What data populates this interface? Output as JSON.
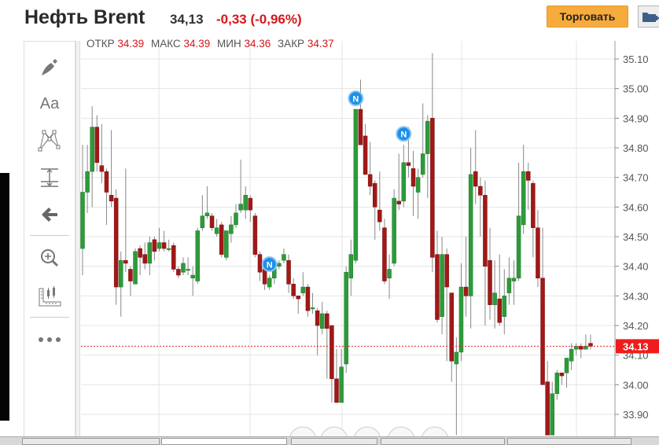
{
  "header": {
    "title": "Нефть Brent",
    "last_price": "34,13",
    "change": "-0,33 (-0,96%)",
    "trade_button": "Торговать",
    "add_to_portfolio_icon": "folder-plus-icon"
  },
  "ohlc_bar": {
    "open_label": "ОТКР",
    "open": "34.39",
    "high_label": "МАКС",
    "high": "34.39",
    "low_label": "МИН",
    "low": "34.36",
    "close_label": "ЗАКР",
    "close": "34.37"
  },
  "toolbar": {
    "items": [
      "brush-icon",
      "text-icon",
      "pattern-icon",
      "measure-icon",
      "back-arrow-icon",
      "zoom-in-icon",
      "chart-settings-icon",
      "more-icon"
    ]
  },
  "colors": {
    "up": "#2e9a3a",
    "down": "#a01818",
    "accent": "#f7ab3d",
    "negative": "#d5161b",
    "news": "#1e8fe8"
  },
  "chart_data": {
    "type": "candlestick",
    "y_ticks": [
      "35.10",
      "35.00",
      "34.90",
      "34.80",
      "34.70",
      "34.60",
      "34.50",
      "34.40",
      "34.30",
      "34.20",
      "34.10",
      "34.00",
      "33.90"
    ],
    "ylim": [
      33.865,
      35.115
    ],
    "current_price": "34.13",
    "current_price_value": 34.13,
    "news_marker_label": "N",
    "news_marker_candles": [
      39,
      57,
      67
    ],
    "candles": [
      [
        34.46,
        34.81,
        34.37,
        34.65
      ],
      [
        34.65,
        34.81,
        34.58,
        34.72
      ],
      [
        34.72,
        34.94,
        34.6,
        34.87
      ],
      [
        34.87,
        34.91,
        34.72,
        34.75
      ],
      [
        34.74,
        34.88,
        34.68,
        34.72
      ],
      [
        34.72,
        34.73,
        34.54,
        34.65
      ],
      [
        34.64,
        34.86,
        34.6,
        34.62
      ],
      [
        34.63,
        34.66,
        34.27,
        34.33
      ],
      [
        34.33,
        34.45,
        34.23,
        34.42
      ],
      [
        34.42,
        34.73,
        34.38,
        34.41
      ],
      [
        34.39,
        34.4,
        34.3,
        34.35
      ],
      [
        34.34,
        34.46,
        34.34,
        34.45
      ],
      [
        34.46,
        34.47,
        34.37,
        34.43
      ],
      [
        34.44,
        34.48,
        34.39,
        34.41
      ],
      [
        34.41,
        34.5,
        34.37,
        34.48
      ],
      [
        34.49,
        34.5,
        34.42,
        34.45
      ],
      [
        34.46,
        34.53,
        34.45,
        34.48
      ],
      [
        34.48,
        34.52,
        34.45,
        34.46
      ],
      [
        34.46,
        34.49,
        34.45,
        34.46
      ],
      [
        34.47,
        34.48,
        34.38,
        34.39
      ],
      [
        34.39,
        34.4,
        34.36,
        34.37
      ],
      [
        34.38,
        34.43,
        34.37,
        34.41
      ],
      [
        34.39,
        34.43,
        34.37,
        34.39
      ],
      [
        34.36,
        34.4,
        34.3,
        34.37
      ],
      [
        34.35,
        34.53,
        34.34,
        34.52
      ],
      [
        34.53,
        34.64,
        34.52,
        34.57
      ],
      [
        34.57,
        34.67,
        34.56,
        34.58
      ],
      [
        34.57,
        34.58,
        34.52,
        34.53
      ],
      [
        34.51,
        34.56,
        34.5,
        34.53
      ],
      [
        34.54,
        34.55,
        34.43,
        34.44
      ],
      [
        34.43,
        34.52,
        34.42,
        34.52
      ],
      [
        34.51,
        34.57,
        34.48,
        34.54
      ],
      [
        34.54,
        34.61,
        34.53,
        34.58
      ],
      [
        34.59,
        34.76,
        34.58,
        34.61
      ],
      [
        34.59,
        34.67,
        34.56,
        34.64
      ],
      [
        34.63,
        34.64,
        34.55,
        34.59
      ],
      [
        34.57,
        34.58,
        34.43,
        34.44
      ],
      [
        34.44,
        34.45,
        34.35,
        34.38
      ],
      [
        34.39,
        34.4,
        34.32,
        34.34
      ],
      [
        34.33,
        34.37,
        34.32,
        34.36
      ],
      [
        34.36,
        34.42,
        34.34,
        34.41
      ],
      [
        34.4,
        34.42,
        34.39,
        34.41
      ],
      [
        34.42,
        34.46,
        34.41,
        34.44
      ],
      [
        34.42,
        34.44,
        34.31,
        34.34
      ],
      [
        34.34,
        34.36,
        34.29,
        34.3
      ],
      [
        34.3,
        34.3,
        34.24,
        34.29
      ],
      [
        34.31,
        34.38,
        34.3,
        34.33
      ],
      [
        34.33,
        34.34,
        34.23,
        34.25
      ],
      [
        34.26,
        34.31,
        34.24,
        34.26
      ],
      [
        34.25,
        34.26,
        34.1,
        34.2
      ],
      [
        34.19,
        34.28,
        34.17,
        34.24
      ],
      [
        34.24,
        34.25,
        34.02,
        34.19
      ],
      [
        34.2,
        34.2,
        33.94,
        34.02
      ],
      [
        34.02,
        34.12,
        33.94,
        33.94
      ],
      [
        33.94,
        34.12,
        33.94,
        34.06
      ],
      [
        34.07,
        34.4,
        34.04,
        34.38
      ],
      [
        34.36,
        34.49,
        34.3,
        34.44
      ],
      [
        34.42,
        34.93,
        34.41,
        34.93
      ],
      [
        34.93,
        35.03,
        34.81,
        34.81
      ],
      [
        34.84,
        34.88,
        34.71,
        34.71
      ],
      [
        34.71,
        34.82,
        34.64,
        34.67
      ],
      [
        34.68,
        34.69,
        34.49,
        34.6
      ],
      [
        34.59,
        34.72,
        34.52,
        34.55
      ],
      [
        34.53,
        34.56,
        34.34,
        34.35
      ],
      [
        34.36,
        34.44,
        34.29,
        34.39
      ],
      [
        34.41,
        34.66,
        34.4,
        34.63
      ],
      [
        34.62,
        34.78,
        34.59,
        34.61
      ],
      [
        34.62,
        34.81,
        34.6,
        34.75
      ],
      [
        34.75,
        34.87,
        34.7,
        34.74
      ],
      [
        34.73,
        34.79,
        34.57,
        34.67
      ],
      [
        34.65,
        34.73,
        34.56,
        34.7
      ],
      [
        34.71,
        34.95,
        34.7,
        34.78
      ],
      [
        34.78,
        34.91,
        34.63,
        34.89
      ],
      [
        34.9,
        35.12,
        34.38,
        34.43
      ],
      [
        34.44,
        34.52,
        34.21,
        34.22
      ],
      [
        34.23,
        34.5,
        34.17,
        34.44
      ],
      [
        34.44,
        34.46,
        34.08,
        34.33
      ],
      [
        34.31,
        34.31,
        34.01,
        34.08
      ],
      [
        34.07,
        34.16,
        33.83,
        34.11
      ],
      [
        34.11,
        34.41,
        34.08,
        34.33
      ],
      [
        34.33,
        34.5,
        34.23,
        34.3
      ],
      [
        34.3,
        34.8,
        34.19,
        34.71
      ],
      [
        34.72,
        34.86,
        34.61,
        34.67
      ],
      [
        34.67,
        34.7,
        34.5,
        34.64
      ],
      [
        34.64,
        34.69,
        34.2,
        34.4
      ],
      [
        34.42,
        34.53,
        34.22,
        34.27
      ],
      [
        34.27,
        34.42,
        34.19,
        34.31
      ],
      [
        34.29,
        34.44,
        34.2,
        34.21
      ],
      [
        34.23,
        34.39,
        34.17,
        34.3
      ],
      [
        34.31,
        34.43,
        34.27,
        34.36
      ],
      [
        34.35,
        34.42,
        34.27,
        34.36
      ],
      [
        34.36,
        34.75,
        34.35,
        34.57
      ],
      [
        34.54,
        34.81,
        34.51,
        34.72
      ],
      [
        34.72,
        34.75,
        34.59,
        34.69
      ],
      [
        34.68,
        34.69,
        34.43,
        34.53
      ],
      [
        34.53,
        34.59,
        34.33,
        34.36
      ],
      [
        34.36,
        34.53,
        34.0,
        34.0
      ],
      [
        34.01,
        34.08,
        33.83,
        33.83
      ],
      [
        33.83,
        34.01,
        33.83,
        33.97
      ],
      [
        33.97,
        34.05,
        33.95,
        34.04
      ],
      [
        34.04,
        34.04,
        34.0,
        34.03
      ],
      [
        34.04,
        34.09,
        33.99,
        34.09
      ],
      [
        34.08,
        34.14,
        34.05,
        34.12
      ],
      [
        34.12,
        34.14,
        34.1,
        34.13
      ],
      [
        34.13,
        34.14,
        34.09,
        34.12
      ],
      [
        34.12,
        34.17,
        34.12,
        34.13
      ],
      [
        34.14,
        34.17,
        34.12,
        34.13
      ]
    ]
  }
}
